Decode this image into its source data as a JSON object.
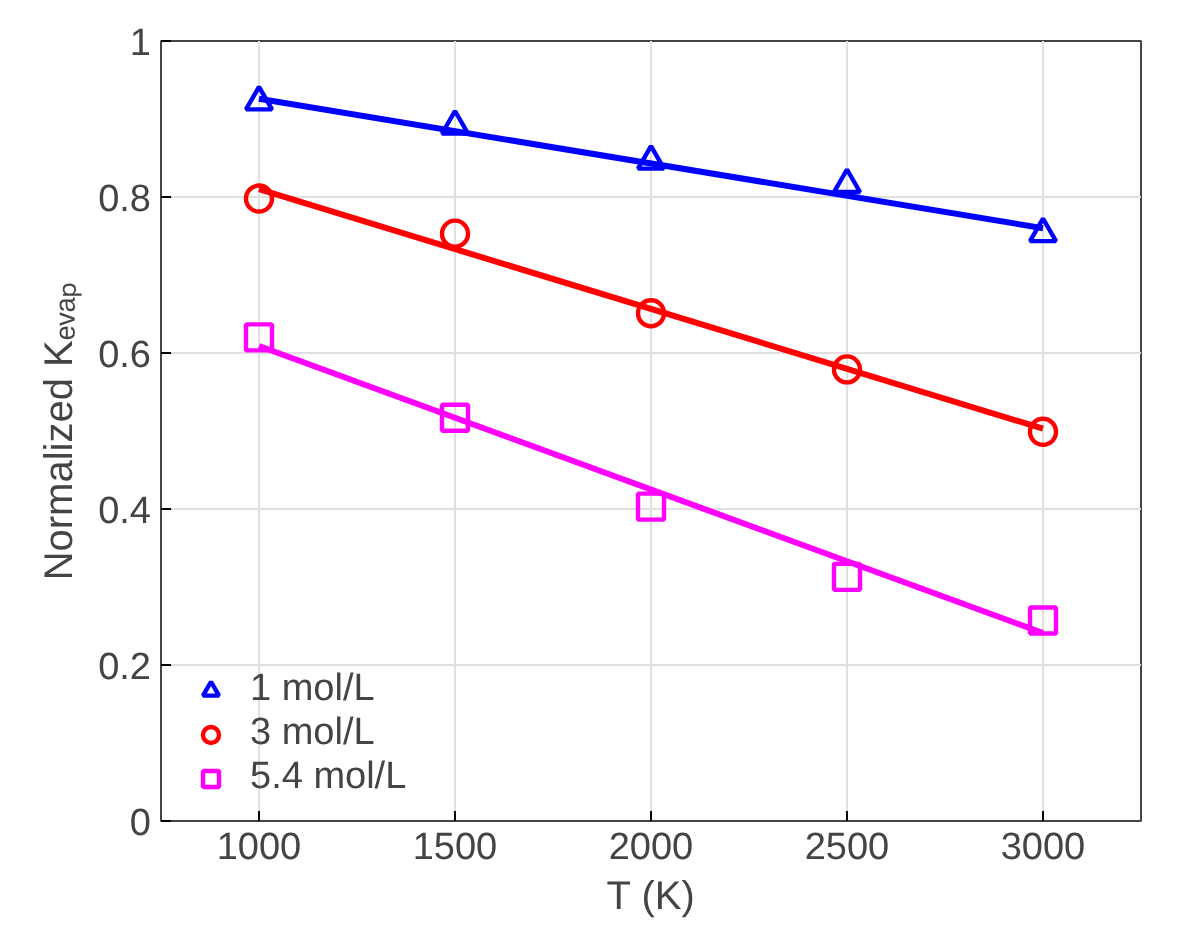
{
  "chart_data": {
    "type": "scatter",
    "xlabel": "T (K)",
    "ylabel": "Normalized Kₑᵥₐₚ",
    "xlim": [
      750,
      3250
    ],
    "xticks": [
      1000,
      1500,
      2000,
      2500,
      3000
    ],
    "ylim": [
      0,
      1
    ],
    "yticks": [
      0,
      0.2,
      0.4,
      0.6,
      0.8,
      1
    ],
    "grid": true,
    "legend": "bottom left",
    "series": [
      {
        "name": "1 mol/L",
        "marker": "triangle",
        "color": "#0000ff",
        "x": [
          1000,
          1500,
          2000,
          2500,
          3000
        ],
        "values": [
          0.922,
          0.891,
          0.846,
          0.816,
          0.753
        ]
      },
      {
        "name": "3 mol/L",
        "marker": "circle",
        "color": "#ff0000",
        "x": [
          1000,
          1500,
          2000,
          2500,
          3000
        ],
        "values": [
          0.798,
          0.753,
          0.651,
          0.579,
          0.499
        ]
      },
      {
        "name": "5.4 mol/L",
        "marker": "square",
        "color": "#ff00ff",
        "x": [
          1000,
          1500,
          2000,
          2500,
          3000
        ],
        "values": [
          0.62,
          0.517,
          0.403,
          0.313,
          0.257
        ]
      },
      {
        "type": "line",
        "color": "#0000ff",
        "line_style": "solid",
        "x": [
          1000,
          3000
        ],
        "values": [
          0.926,
          0.76
        ]
      },
      {
        "type": "line",
        "color": "#ff0000",
        "line_style": "solid",
        "x": [
          1000,
          3000
        ],
        "values": [
          0.81,
          0.503
        ]
      },
      {
        "type": "line",
        "color": "#ff00ff",
        "line_style": "solid",
        "x": [
          1000,
          3000
        ],
        "values": [
          0.609,
          0.241
        ]
      }
    ]
  }
}
